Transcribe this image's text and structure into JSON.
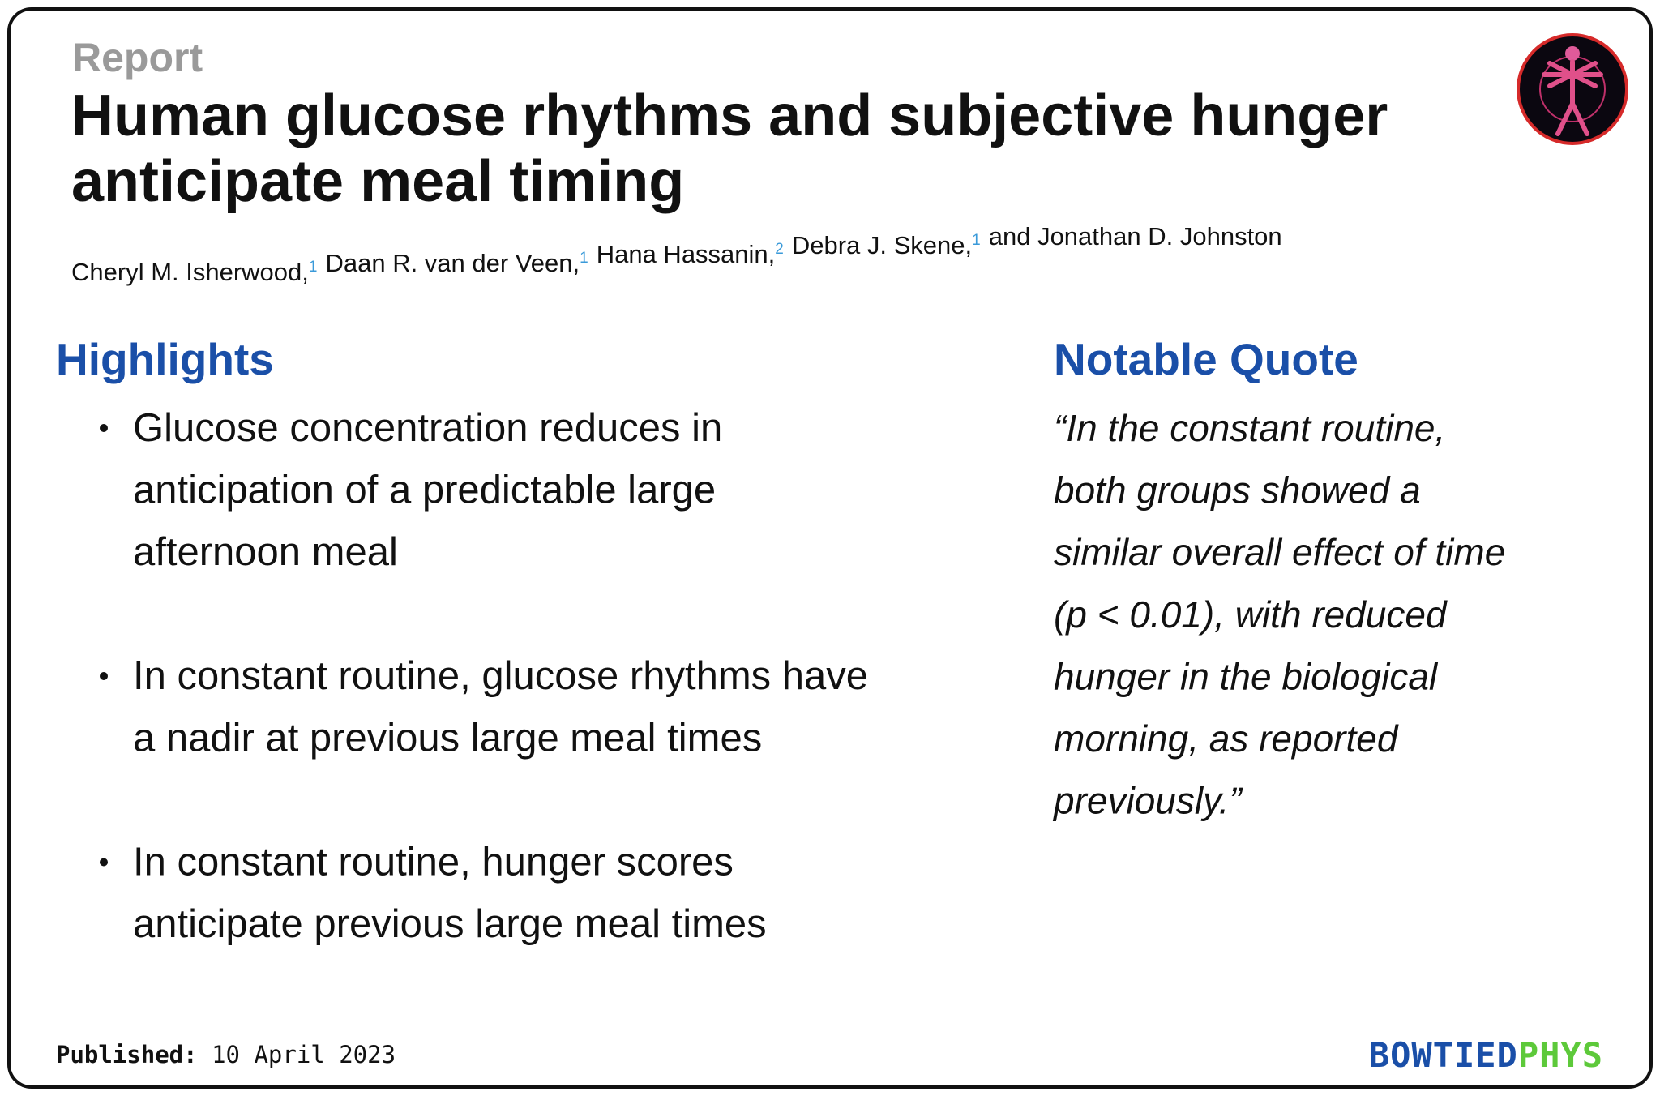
{
  "header": {
    "label": "Report",
    "title_lines": [
      "Human glucose rhythms and subjective hunger",
      "anticipate meal timing"
    ],
    "authors": [
      {
        "name": "Cheryl M. Isherwood,",
        "affiliation": "1"
      },
      {
        "name": "Daan R. van der Veen,",
        "affiliation": "1"
      },
      {
        "name": "Hana Hassanin,",
        "affiliation": "2"
      },
      {
        "name": "Debra J. Skene,",
        "affiliation": "1"
      },
      {
        "name": "and Jonathan D. Johnston"
      }
    ]
  },
  "highlights": {
    "heading": "Highlights",
    "items": [
      {
        "lines": [
          "Glucose concentration reduces in",
          "anticipation of a predictable large",
          "afternoon meal"
        ]
      },
      {
        "lines": [
          "In constant routine, glucose rhythms have",
          "a nadir at previous large meal times"
        ]
      },
      {
        "lines": [
          "In constant routine, hunger scores",
          "anticipate previous large meal times"
        ]
      }
    ]
  },
  "quote": {
    "heading": "Notable Quote",
    "lines": [
      "“In the constant routine,",
      "both groups showed a",
      "similar overall effect of time",
      "(p < 0.01), with reduced",
      "hunger in the biological",
      "morning, as reported",
      "previously.”"
    ]
  },
  "footer": {
    "published_label": "Published:",
    "date": "10 April 2023",
    "brand": [
      "BOWTIED",
      "PHYS"
    ]
  }
}
